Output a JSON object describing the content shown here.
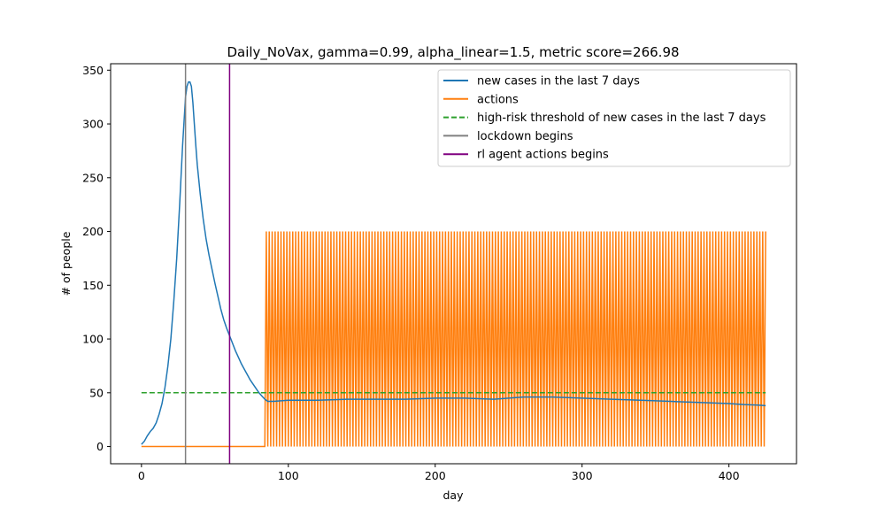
{
  "chart_data": {
    "type": "line",
    "title": "Daily_NoVax, gamma=0.99, alpha_linear=1.5, metric score=266.98",
    "xlabel": "day",
    "ylabel": "# of people",
    "xlim": [
      -21,
      446
    ],
    "ylim": [
      -16,
      356
    ],
    "xticks": [
      0,
      100,
      200,
      300,
      400
    ],
    "yticks": [
      0,
      50,
      100,
      150,
      200,
      250,
      300,
      350
    ],
    "grid": false,
    "legend_position": "top-right",
    "series": [
      {
        "name": "new cases in the last 7 days",
        "color": "#1f77b4",
        "style": "solid",
        "x": [
          0,
          2,
          4,
          6,
          8,
          10,
          12,
          14,
          16,
          18,
          20,
          22,
          24,
          26,
          28,
          30,
          31,
          32,
          33,
          34,
          35,
          36,
          37,
          38,
          40,
          42,
          44,
          46,
          48,
          50,
          52,
          54,
          56,
          58,
          60,
          62,
          64,
          66,
          68,
          70,
          72,
          74,
          76,
          78,
          80,
          82,
          84,
          86,
          88,
          90,
          100,
          120,
          140,
          160,
          180,
          200,
          220,
          240,
          260,
          280,
          300,
          320,
          340,
          360,
          380,
          400,
          410,
          420,
          425
        ],
        "y": [
          2,
          5,
          10,
          14,
          17,
          22,
          30,
          40,
          55,
          75,
          100,
          135,
          175,
          225,
          280,
          325,
          335,
          339,
          339,
          335,
          320,
          300,
          280,
          262,
          235,
          212,
          193,
          178,
          165,
          152,
          140,
          128,
          118,
          110,
          103,
          96,
          89,
          83,
          77,
          72,
          67,
          62,
          58,
          54,
          50,
          47,
          44,
          42,
          42,
          42,
          43,
          43,
          44,
          44,
          44,
          45,
          45,
          44,
          46,
          46,
          45,
          44,
          43,
          42,
          41,
          40,
          39,
          38.5,
          38
        ]
      },
      {
        "name": "actions",
        "color": "#ff7f0e",
        "style": "solid",
        "description": "0 until day 84, then toggling between 0 and 200",
        "low": 0,
        "high": 200,
        "start_day": 0,
        "switch_day": 84,
        "end_day": 425
      },
      {
        "name": "high-risk threshold of new cases in the last 7 days",
        "color": "#2ca02c",
        "style": "dashed",
        "x": [
          0,
          425
        ],
        "y": [
          50,
          50
        ]
      },
      {
        "name": "lockdown begins",
        "color": "#808080",
        "style": "vertical",
        "x": 30
      },
      {
        "name": "rl agent actions begins",
        "color": "#800080",
        "style": "vertical",
        "x": 60
      }
    ]
  }
}
